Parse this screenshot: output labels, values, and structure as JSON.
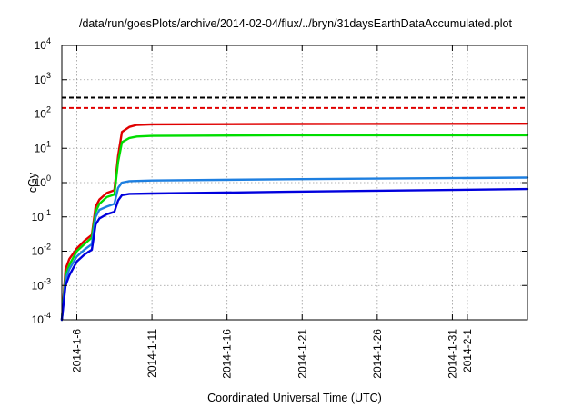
{
  "chart_data": {
    "type": "line",
    "title": "/data/run/goesPlots/archive/2014-02-04/flux/../bryn/31daysEarthDataAccumulated.plot",
    "xlabel": "Coordinated Universal Time (UTC)",
    "ylabel": "cGy",
    "y_scale": "log",
    "ylim": [
      0.0001,
      10000
    ],
    "xlim": [
      "2014-01-05",
      "2014-02-05"
    ],
    "grid": true,
    "legend": "none",
    "x_ticks": [
      {
        "x": "2014-01-06",
        "label": "2014-1-6"
      },
      {
        "x": "2014-01-11",
        "label": "2014-1-11"
      },
      {
        "x": "2014-01-16",
        "label": "2014-1-16"
      },
      {
        "x": "2014-01-21",
        "label": "2014-1-21"
      },
      {
        "x": "2014-01-26",
        "label": "2014-1-26"
      },
      {
        "x": "2014-01-31",
        "label": "2014-1-31"
      },
      {
        "x": "2014-02-01",
        "label": "2014-2-1"
      }
    ],
    "y_ticks": [
      {
        "value": 0.0001,
        "base": "10",
        "exp": "-4"
      },
      {
        "value": 0.001,
        "base": "10",
        "exp": "-3"
      },
      {
        "value": 0.01,
        "base": "10",
        "exp": "-2"
      },
      {
        "value": 0.1,
        "base": "10",
        "exp": "-1"
      },
      {
        "value": 1,
        "base": "10",
        "exp": "0"
      },
      {
        "value": 10,
        "base": "10",
        "exp": "1"
      },
      {
        "value": 100,
        "base": "10",
        "exp": "2"
      },
      {
        "value": 1000,
        "base": "10",
        "exp": "3"
      },
      {
        "value": 10000,
        "base": "10",
        "exp": "4"
      }
    ],
    "series": [
      {
        "color": "#000000",
        "dash": true,
        "points": [
          [
            "2014-01-05",
            300
          ],
          [
            "2014-02-05",
            300
          ]
        ]
      },
      {
        "color": "#e00000",
        "dash": true,
        "points": [
          [
            "2014-01-05",
            150
          ],
          [
            "2014-02-05",
            150
          ]
        ]
      },
      {
        "color": "#e00000",
        "dash": false,
        "points": [
          [
            "2014-01-05",
            0.0001
          ],
          [
            "2014-01-05T06:00",
            0.003
          ],
          [
            "2014-01-05T12:00",
            0.006
          ],
          [
            "2014-01-06",
            0.012
          ],
          [
            "2014-01-06T12:00",
            0.02
          ],
          [
            "2014-01-07",
            0.03
          ],
          [
            "2014-01-07T06:00",
            0.2
          ],
          [
            "2014-01-07T12:00",
            0.32
          ],
          [
            "2014-01-08",
            0.5
          ],
          [
            "2014-01-08T12:00",
            0.6
          ],
          [
            "2014-01-08T18:00",
            6
          ],
          [
            "2014-01-09",
            30
          ],
          [
            "2014-01-09T12:00",
            42
          ],
          [
            "2014-01-10",
            48
          ],
          [
            "2014-01-11",
            50
          ],
          [
            "2014-01-20",
            51
          ],
          [
            "2014-02-05",
            52
          ]
        ]
      },
      {
        "color": "#00dd00",
        "dash": false,
        "points": [
          [
            "2014-01-05",
            0.0001
          ],
          [
            "2014-01-05T06:00",
            0.002
          ],
          [
            "2014-01-05T12:00",
            0.004
          ],
          [
            "2014-01-06",
            0.01
          ],
          [
            "2014-01-06T12:00",
            0.016
          ],
          [
            "2014-01-07",
            0.025
          ],
          [
            "2014-01-07T06:00",
            0.14
          ],
          [
            "2014-01-07T12:00",
            0.24
          ],
          [
            "2014-01-08",
            0.38
          ],
          [
            "2014-01-08T12:00",
            0.45
          ],
          [
            "2014-01-08T18:00",
            4
          ],
          [
            "2014-01-09",
            15
          ],
          [
            "2014-01-09T12:00",
            20
          ],
          [
            "2014-01-10",
            22
          ],
          [
            "2014-01-11",
            23
          ],
          [
            "2014-01-20",
            24
          ],
          [
            "2014-02-05",
            24
          ]
        ]
      },
      {
        "color": "#1e7fe0",
        "dash": false,
        "points": [
          [
            "2014-01-05",
            0.0001
          ],
          [
            "2014-01-05T06:00",
            0.0015
          ],
          [
            "2014-01-05T12:00",
            0.003
          ],
          [
            "2014-01-06",
            0.007
          ],
          [
            "2014-01-06T12:00",
            0.011
          ],
          [
            "2014-01-07",
            0.016
          ],
          [
            "2014-01-07T06:00",
            0.1
          ],
          [
            "2014-01-07T12:00",
            0.16
          ],
          [
            "2014-01-08",
            0.2
          ],
          [
            "2014-01-08T12:00",
            0.24
          ],
          [
            "2014-01-08T18:00",
            0.7
          ],
          [
            "2014-01-09",
            1.0
          ],
          [
            "2014-01-09T12:00",
            1.1
          ],
          [
            "2014-01-11",
            1.15
          ],
          [
            "2014-01-20",
            1.25
          ],
          [
            "2014-02-05",
            1.4
          ]
        ]
      },
      {
        "color": "#0000dd",
        "dash": false,
        "points": [
          [
            "2014-01-05",
            0.0001
          ],
          [
            "2014-01-05T06:00",
            0.001
          ],
          [
            "2014-01-05T12:00",
            0.002
          ],
          [
            "2014-01-06",
            0.005
          ],
          [
            "2014-01-06T12:00",
            0.008
          ],
          [
            "2014-01-07",
            0.011
          ],
          [
            "2014-01-07T06:00",
            0.06
          ],
          [
            "2014-01-07T12:00",
            0.09
          ],
          [
            "2014-01-08",
            0.12
          ],
          [
            "2014-01-08T12:00",
            0.14
          ],
          [
            "2014-01-08T18:00",
            0.3
          ],
          [
            "2014-01-09",
            0.43
          ],
          [
            "2014-01-09T12:00",
            0.47
          ],
          [
            "2014-01-11",
            0.48
          ],
          [
            "2014-01-20",
            0.54
          ],
          [
            "2014-02-05",
            0.65
          ]
        ]
      }
    ]
  }
}
